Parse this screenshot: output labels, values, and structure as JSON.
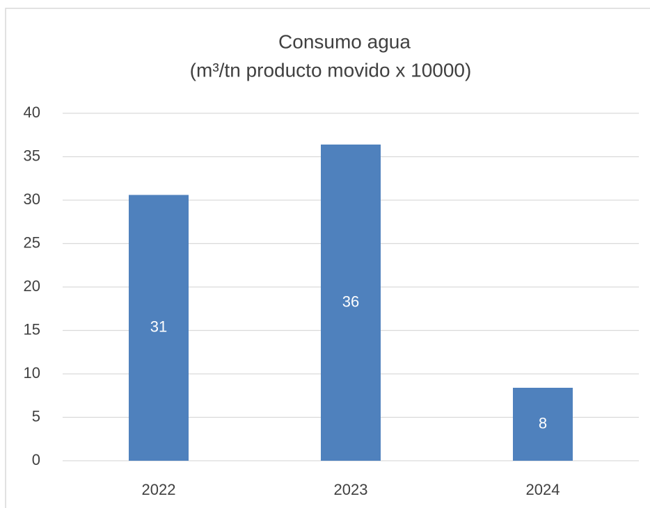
{
  "chart_data": {
    "type": "bar",
    "title": "Consumo agua",
    "subtitle": "(m³/tn producto movido x 10000)",
    "categories": [
      "2022",
      "2023",
      "2024"
    ],
    "values": [
      30.6,
      36.4,
      8.4
    ],
    "value_labels": [
      "31",
      "36",
      "8"
    ],
    "color": "#4f81bd",
    "ylim": [
      0,
      40
    ],
    "yticks": [
      0,
      5,
      10,
      15,
      20,
      25,
      30,
      35,
      40
    ],
    "grid": true
  }
}
